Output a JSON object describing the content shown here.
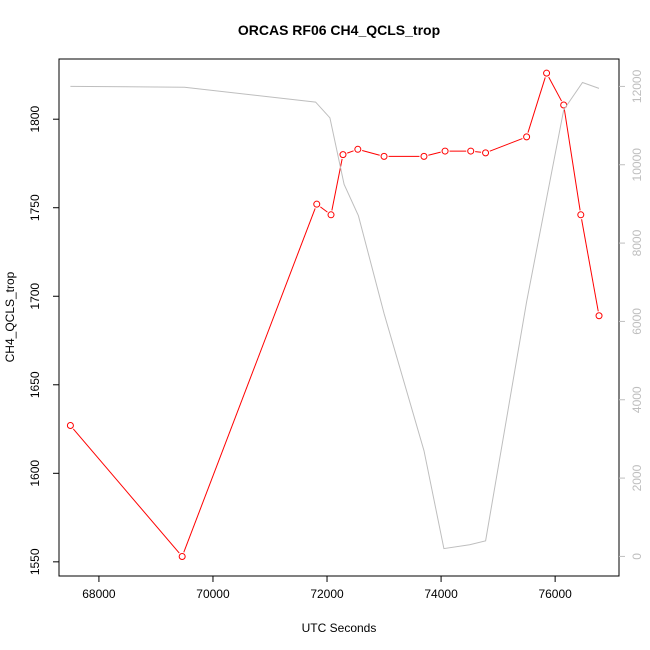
{
  "chart_data": {
    "type": "line",
    "title": "ORCAS RF06 CH4_QCLS_trop",
    "xlabel": "UTC Seconds",
    "ylabel": "CH4_QCLS_trop",
    "xlim": [
      67300,
      77120
    ],
    "ylim": [
      1542,
      1834
    ],
    "y2lim": [
      -500,
      12700
    ],
    "x_ticks": [
      "68000",
      "70000",
      "72000",
      "74000",
      "76000"
    ],
    "y_ticks": [
      "1550",
      "1600",
      "1650",
      "1700",
      "1750",
      "1800"
    ],
    "y2_ticks": [
      "0",
      "2000",
      "4000",
      "6000",
      "8000",
      "10000",
      "12000"
    ],
    "grid": false,
    "colors": {
      "primary": "#ff0000",
      "secondary": "#bebebe",
      "axis": "#000000"
    },
    "series": [
      {
        "axis": "left",
        "style": "line-with-circles",
        "color": "#ff0000",
        "x": [
          67500,
          69460,
          71820,
          72070,
          72280,
          72540,
          73000,
          73700,
          74070,
          74520,
          74780,
          75500,
          75850,
          76150,
          76450,
          76770
        ],
        "y": [
          1627,
          1553,
          1752,
          1746,
          1780,
          1783,
          1779,
          1779,
          1782,
          1782,
          1781,
          1790,
          1826,
          1808,
          1746,
          1689
        ]
      },
      {
        "axis": "right",
        "style": "line",
        "color": "#bebebe",
        "x": [
          67500,
          69500,
          71800,
          72050,
          72300,
          72550,
          73000,
          73700,
          74050,
          74500,
          74780,
          75500,
          76150,
          76480,
          76770
        ],
        "y": [
          12000,
          11980,
          11600,
          11200,
          9500,
          8700,
          6200,
          2700,
          200,
          300,
          400,
          6500,
          11400,
          12100,
          11950
        ]
      }
    ]
  }
}
